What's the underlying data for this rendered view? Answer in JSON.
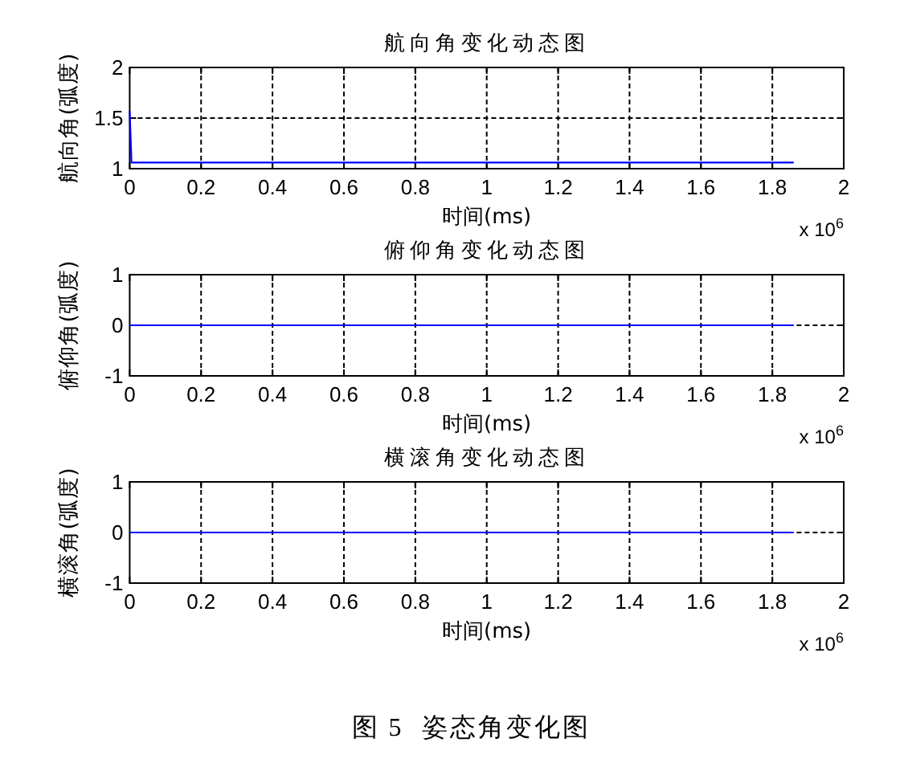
{
  "chart_data": [
    {
      "type": "line",
      "title": "航向角变化动态图",
      "xlabel": "时间(ms)",
      "ylabel": "航向角(弧度)",
      "x": [
        0,
        0.005,
        1.86
      ],
      "series": [
        {
          "color": "#0000ff",
          "values": [
            1.57,
            1.06,
            1.06
          ]
        }
      ],
      "xlim": [
        0,
        2
      ],
      "xticks": [
        0,
        0.2,
        0.4,
        0.6,
        0.8,
        1,
        1.2,
        1.4,
        1.6,
        1.8,
        2
      ],
      "ylim": [
        1,
        2
      ],
      "yticks": [
        1,
        1.5,
        2
      ],
      "grid": true,
      "annotations": [
        "x 10$^{6}$"
      ]
    },
    {
      "type": "line",
      "title": "俯仰角变化动态图",
      "xlabel": "时间(ms)",
      "ylabel": "俯仰角(弧度)",
      "x": [
        0,
        1.86
      ],
      "series": [
        {
          "color": "#0000ff",
          "values": [
            0,
            0
          ]
        }
      ],
      "xlim": [
        0,
        2
      ],
      "xticks": [
        0,
        0.2,
        0.4,
        0.6,
        0.8,
        1,
        1.2,
        1.4,
        1.6,
        1.8,
        2
      ],
      "ylim": [
        -1,
        1
      ],
      "yticks": [
        -1,
        0,
        1
      ],
      "grid": true,
      "annotations": [
        "x 10$^{6}$"
      ]
    },
    {
      "type": "line",
      "title": "横滚角变化动态图",
      "xlabel": "时间(ms)",
      "ylabel": "横滚角(弧度)",
      "x": [
        0,
        1.86
      ],
      "series": [
        {
          "color": "#0000ff",
          "values": [
            0,
            0
          ]
        }
      ],
      "xlim": [
        0,
        2
      ],
      "xticks": [
        0,
        0.2,
        0.4,
        0.6,
        0.8,
        1,
        1.2,
        1.4,
        1.6,
        1.8,
        2
      ],
      "ylim": [
        -1,
        1
      ],
      "yticks": [
        -1,
        0,
        1
      ],
      "grid": true,
      "annotations": [
        "x 10$^{6}$",
        "图 5  姿态角变化图"
      ]
    }
  ]
}
